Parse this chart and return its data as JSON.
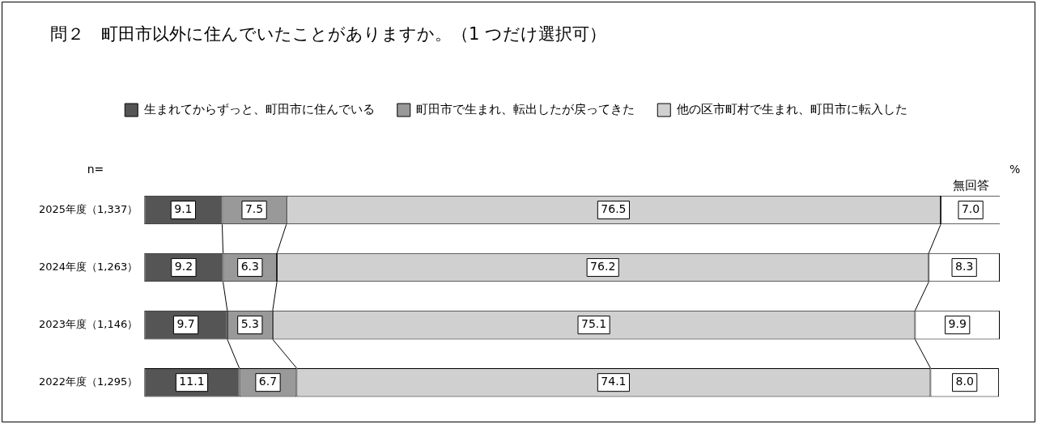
{
  "chart_data": {
    "type": "bar",
    "orientation": "horizontal",
    "stacked": true,
    "title": "問２　町田市以外に住んでいたことがありますか。（1 つだけ選択可）",
    "categories": [
      "2025年度（1,337）",
      "2024年度（1,263）",
      "2023年度（1,146）",
      "2022年度（1,295）"
    ],
    "series": [
      {
        "name": "生まれてからずっと、町田市に住んでいる",
        "color": "#555555",
        "values": [
          9.1,
          9.2,
          9.7,
          11.1
        ],
        "value_labels": [
          "9.1",
          "9.2",
          "9.7",
          "11.1"
        ]
      },
      {
        "name": "町田市で生まれ、転出したが戻ってきた",
        "color": "#999999",
        "values": [
          7.5,
          6.3,
          5.3,
          6.7
        ],
        "value_labels": [
          "7.5",
          "6.3",
          "5.3",
          "6.7"
        ]
      },
      {
        "name": "他の区市町村で生まれ、町田市に転入した",
        "color": "#d0d0d0",
        "values": [
          76.5,
          76.2,
          75.1,
          74.1
        ],
        "value_labels": [
          "76.5",
          "76.2",
          "75.1",
          "74.1"
        ]
      },
      {
        "name": "無回答",
        "color": "#ffffff",
        "values": [
          7.0,
          8.3,
          9.9,
          8.0
        ],
        "value_labels": [
          "7.0",
          "8.3",
          "9.9",
          "8.0"
        ]
      }
    ],
    "xlim": [
      0,
      100
    ],
    "tick_labels": "y",
    "grid": false,
    "legend": "top",
    "annotations": [
      "n=",
      "%"
    ]
  }
}
